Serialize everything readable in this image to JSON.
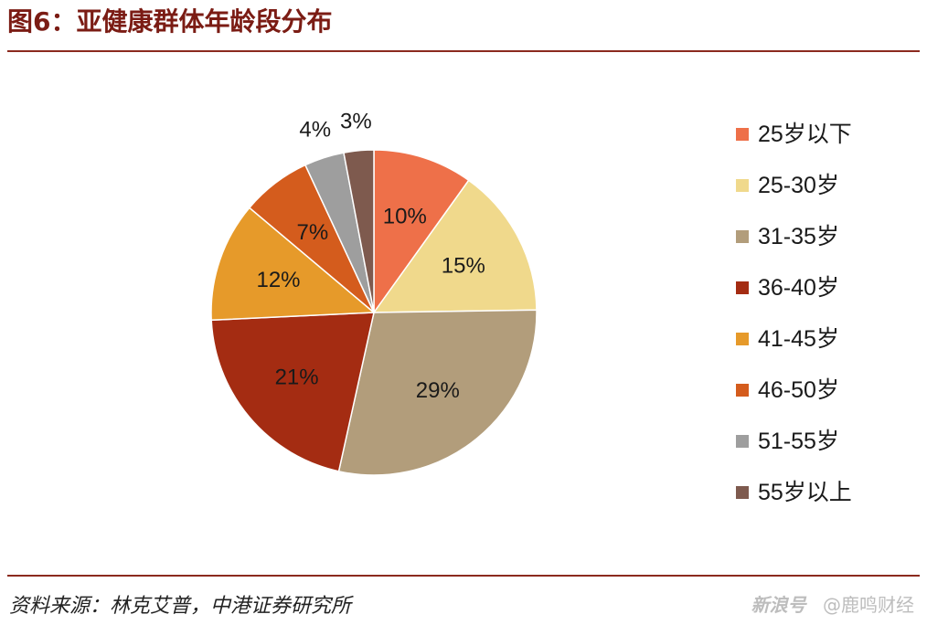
{
  "header": {
    "title": "图6：亚健康群体年龄段分布"
  },
  "footer": {
    "source": "资料来源：林克艾普，中港证券研究所",
    "watermark_brand": "新浪号",
    "watermark_account": "@鹿鸣财经"
  },
  "chart_data": {
    "type": "pie",
    "start_angle_deg": 0,
    "direction": "clockwise",
    "legend_position": "right",
    "categories": [
      "25岁以下",
      "25-30岁",
      "31-35岁",
      "36-40岁",
      "41-45岁",
      "46-50岁",
      "51-55岁",
      "55岁以上"
    ],
    "values": [
      10,
      15,
      29,
      21,
      12,
      7,
      4,
      3
    ],
    "labels": [
      "10%",
      "15%",
      "29%",
      "21%",
      "12%",
      "7%",
      "4%",
      "3%"
    ],
    "colors": [
      "#ee7049",
      "#f0d98c",
      "#b29d7b",
      "#a42c12",
      "#e69a2a",
      "#d45c1d",
      "#9e9e9e",
      "#7e5a4e"
    ]
  }
}
